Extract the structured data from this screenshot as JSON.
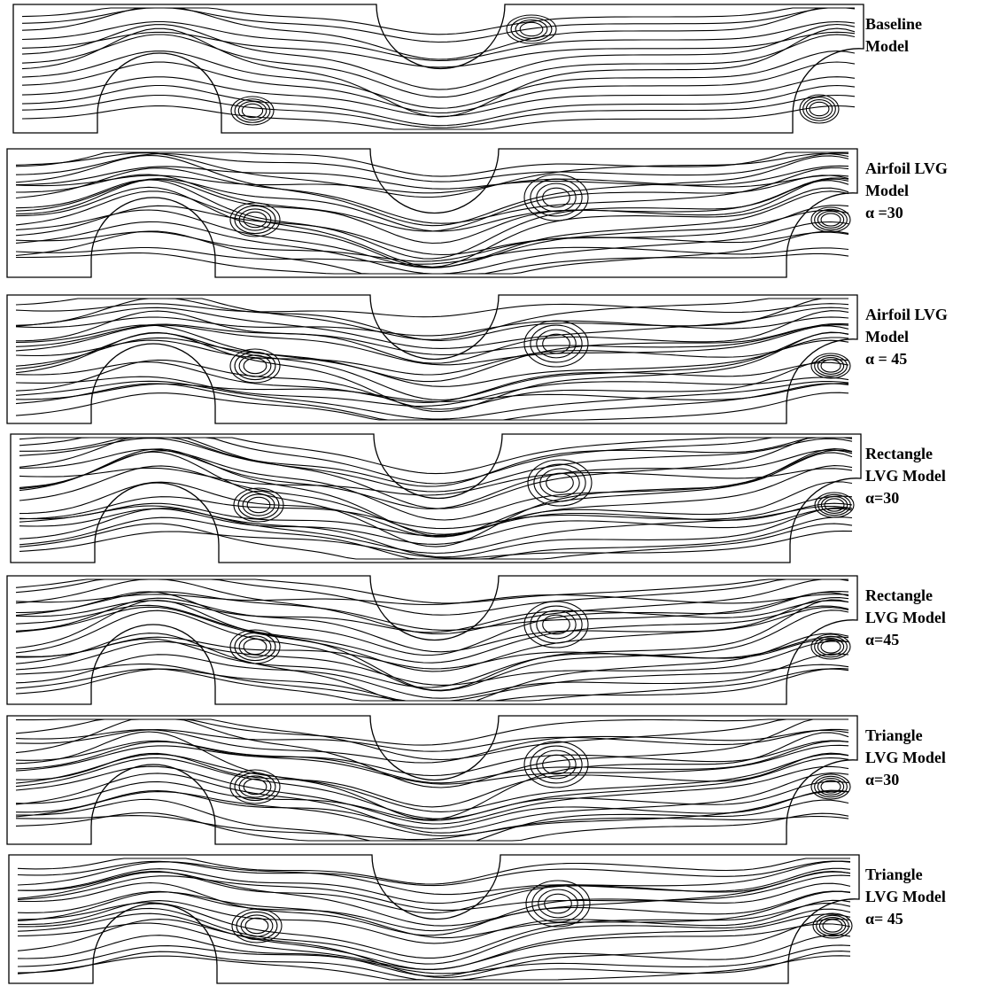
{
  "panels": [
    {
      "label": [
        "Baseline",
        "Model"
      ]
    },
    {
      "label": [
        "Airfoil LVG",
        "Model",
        "α =30"
      ]
    },
    {
      "label": [
        "Airfoil LVG",
        "Model",
        "α = 45"
      ]
    },
    {
      "label": [
        "Rectangle",
        "LVG Model",
        "α=30"
      ]
    },
    {
      "label": [
        "Rectangle",
        "LVG Model",
        "α=45"
      ]
    },
    {
      "label": [
        "Triangle",
        "LVG Model",
        "α=30"
      ]
    },
    {
      "label": [
        "Triangle",
        "LVG Model",
        "α= 45"
      ]
    }
  ]
}
